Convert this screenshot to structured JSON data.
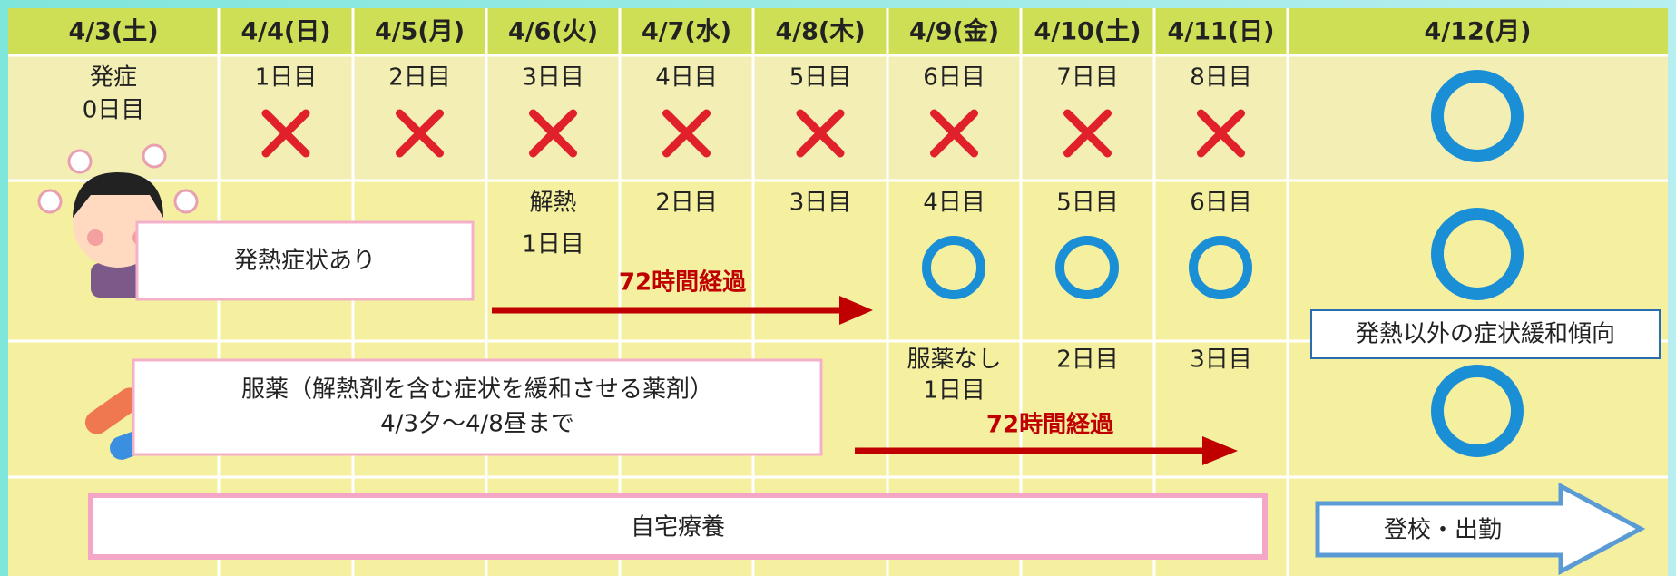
{
  "header": {
    "dates": [
      "4/3(土)",
      "4/4(日)",
      "4/5(月)",
      "4/6(火)",
      "4/7(水)",
      "4/8(木)",
      "4/9(金)",
      "4/10(土)",
      "4/11(日)",
      "4/12(月)"
    ]
  },
  "onset_row": {
    "cells": [
      [
        "発症",
        "0日目"
      ],
      [
        "1日目"
      ],
      [
        "2日目"
      ],
      [
        "3日目"
      ],
      [
        "4日目"
      ],
      [
        "5日目"
      ],
      [
        "6日目"
      ],
      [
        "7日目"
      ],
      [
        "8日目"
      ]
    ]
  },
  "fever_row": {
    "label": "発熱症状あり",
    "cells": [
      [
        "解熱",
        "1日目"
      ],
      [
        "2日目"
      ],
      [
        "3日目"
      ],
      [
        "4日目"
      ],
      [
        "5日目"
      ],
      [
        "6日目"
      ]
    ],
    "elapsed": "72時間経過",
    "note": "発熱以外の症状緩和傾向"
  },
  "medication_row": {
    "label": [
      "服薬（解熱剤を含む症状を緩和させる薬剤）",
      "4/3夕～4/8昼まで"
    ],
    "cells": [
      [
        "服薬なし",
        "1日目"
      ],
      [
        "2日目"
      ],
      [
        "3日目"
      ]
    ],
    "elapsed": "72時間経過"
  },
  "outcome_row": {
    "home": "自宅療養",
    "return": "登校・出勤"
  }
}
